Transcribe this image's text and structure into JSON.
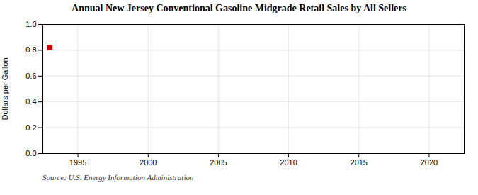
{
  "chart_data": {
    "type": "scatter",
    "title": "Annual New Jersey Conventional Gasoline Midgrade Retail Sales by All Sellers",
    "ylabel": "Dollars per Gallon",
    "source": "Source: U.S. Energy Information Administration",
    "x": [
      1993
    ],
    "values": [
      0.822
    ],
    "color": "#cc0000",
    "marker": "square",
    "xlim": [
      1992.5,
      2022.5
    ],
    "ylim": [
      0.0,
      1.0
    ],
    "xticks": [
      1995,
      2000,
      2005,
      2010,
      2015,
      2020
    ],
    "yticks": [
      {
        "value": 0.0,
        "label": "0.0"
      },
      0.2,
      0.4,
      0.6,
      0.8,
      {
        "value": 1.0,
        "label": "1.0"
      }
    ],
    "grid": true
  }
}
